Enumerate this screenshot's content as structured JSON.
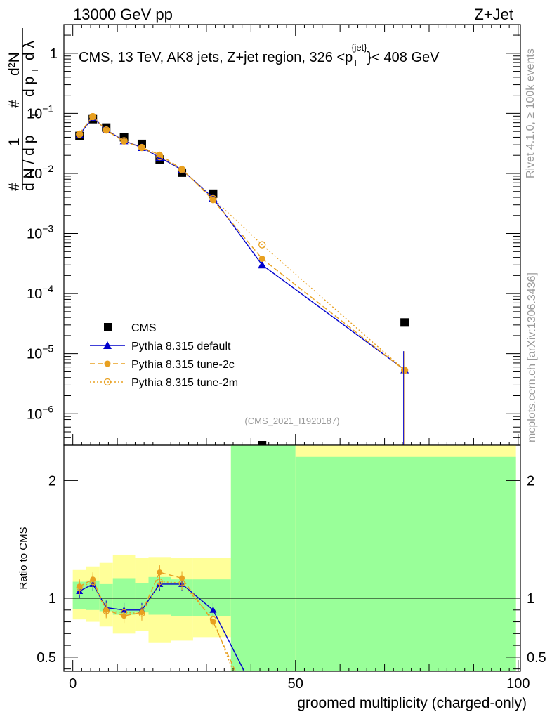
{
  "header": {
    "left": "13000 GeV pp",
    "right": "Z+Jet"
  },
  "side_labels": {
    "rivet": "Rivet 4.1.0, ≥ 100k events",
    "mcplots": "mcplots.cern.ch [arXiv:1306.3436]"
  },
  "chart_data": [
    {
      "type": "scatter",
      "title": "CMS, 13 TeV, AK8 jets, Z+jet region, 326 <p_T^{jet}< 408 GeV",
      "title_parts": {
        "pre": "CMS, 13 TeV, AK8 jets, Z+jet region, 326 <p",
        "sub": "T",
        "sup": "{jet}",
        "post": "}< 408 GeV"
      },
      "watermark": "(CMS_2021_I1920187)",
      "ylabel_parts": {
        "hash": "#",
        "one": "1",
        "dN": "d N / d p",
        "T": "T",
        "d2N": "d²N",
        "dpT": "d p",
        "dlambda": "d λ"
      },
      "yscale": "log",
      "ylim": [
        3e-07,
        3
      ],
      "xlim": [
        -2,
        100.5
      ],
      "y_ticks": [
        {
          "v": 1,
          "label": "1"
        },
        {
          "v": 0.1,
          "base": "10",
          "exp": "−1"
        },
        {
          "v": 0.01,
          "base": "10",
          "exp": "−2"
        },
        {
          "v": 0.001,
          "base": "10",
          "exp": "−3"
        },
        {
          "v": 0.0001,
          "base": "10",
          "exp": "−4"
        },
        {
          "v": 1e-05,
          "base": "10",
          "exp": "−5"
        },
        {
          "v": 1e-06,
          "base": "10",
          "exp": "−6"
        }
      ],
      "legend": {
        "position": "lower-left",
        "entries": [
          "CMS",
          "Pythia 8.315 default",
          "Pythia 8.315 tune-2c",
          "Pythia 8.315 tune-2m"
        ]
      },
      "series": [
        {
          "name": "CMS",
          "color": "#000000",
          "marker": "square",
          "x": [
            1.5,
            4.5,
            7.5,
            11.5,
            15.5,
            19.5,
            24.5,
            31.5,
            42.5,
            74.5
          ],
          "y": [
            0.042,
            0.08,
            0.058,
            0.04,
            0.031,
            0.017,
            0.0103,
            0.0046,
            3e-07,
            3.3e-05
          ]
        },
        {
          "name": "Pythia 8.315 default",
          "color": "#0000cc",
          "marker": "triangle",
          "line": "solid",
          "x": [
            1.5,
            4.5,
            7.5,
            11.5,
            15.5,
            19.5,
            24.5,
            31.5,
            42.5,
            74.5
          ],
          "y": [
            0.044,
            0.086,
            0.053,
            0.035,
            0.027,
            0.0185,
            0.0115,
            0.0039,
            0.0003,
            5.4e-06
          ]
        },
        {
          "name": "Pythia 8.315 tune-2c",
          "color": "#e8a020",
          "marker": "circle",
          "line": "dashed",
          "x": [
            1.5,
            4.5,
            7.5,
            11.5,
            15.5,
            19.5,
            24.5,
            31.5,
            42.5,
            74.5
          ],
          "y": [
            0.046,
            0.09,
            0.052,
            0.034,
            0.027,
            0.0205,
            0.0118,
            0.0036,
            0.00038,
            5.3e-06
          ]
        },
        {
          "name": "Pythia 8.315 tune-2m",
          "color": "#e8a020",
          "marker": "open-circle",
          "line": "dotted",
          "x": [
            1.5,
            4.5,
            7.5,
            11.5,
            15.5,
            19.5,
            24.5,
            31.5,
            42.5,
            74.5
          ],
          "y": [
            0.045,
            0.088,
            0.053,
            0.035,
            0.027,
            0.019,
            0.0116,
            0.0038,
            0.00065,
            5.3e-06
          ]
        }
      ]
    },
    {
      "type": "area",
      "ylabel": "Ratio to CMS",
      "xlabel": "groomed multiplicity (charged-only)",
      "ylim": [
        0.38,
        2.3
      ],
      "xlim": [
        -2,
        100.5
      ],
      "x_ticks": [
        0,
        50,
        100
      ],
      "y_ticks": [
        0.5,
        1,
        2
      ],
      "reference_line": 1,
      "bands": {
        "stat_color": "#99ff99",
        "total_color": "#ffff99",
        "bins": [
          {
            "x0": 0,
            "x1": 3,
            "stat": [
              0.91,
              1.14
            ],
            "total": [
              0.82,
              1.24
            ]
          },
          {
            "x0": 3,
            "x1": 6,
            "stat": [
              0.9,
              1.15
            ],
            "total": [
              0.8,
              1.27
            ]
          },
          {
            "x0": 6,
            "x1": 9,
            "stat": [
              0.89,
              1.12
            ],
            "total": [
              0.76,
              1.3
            ]
          },
          {
            "x0": 9,
            "x1": 14,
            "stat": [
              0.86,
              1.17
            ],
            "total": [
              0.7,
              1.37
            ]
          },
          {
            "x0": 14,
            "x1": 17,
            "stat": [
              0.88,
              1.13
            ],
            "total": [
              0.72,
              1.34
            ]
          },
          {
            "x0": 17,
            "x1": 22,
            "stat": [
              0.86,
              1.18
            ],
            "total": [
              0.62,
              1.35
            ]
          },
          {
            "x0": 22,
            "x1": 27,
            "stat": [
              0.85,
              1.16
            ],
            "total": [
              0.64,
              1.34
            ]
          },
          {
            "x0": 27,
            "x1": 35.5,
            "stat": [
              0.85,
              1.16
            ],
            "total": [
              0.67,
              1.34
            ]
          },
          {
            "x0": 35.5,
            "x1": 50,
            "stat": [
              0.38,
              2.3
            ],
            "total": [
              0.38,
              2.3
            ]
          },
          {
            "x0": 50,
            "x1": 99.5,
            "stat": [
              0.38,
              2.2
            ],
            "total": [
              0.38,
              2.3
            ]
          }
        ]
      },
      "series": [
        {
          "name": "Pythia 8.315 default",
          "x": [
            1.5,
            4.5,
            7.5,
            11.5,
            15.5,
            19.5,
            24.5,
            31.5,
            38.5
          ],
          "y": [
            1.06,
            1.12,
            0.92,
            0.9,
            0.9,
            1.12,
            1.12,
            0.9,
            0.35
          ]
        },
        {
          "name": "Pythia 8.315 tune-2c",
          "x": [
            1.5,
            4.5,
            7.5,
            11.5,
            15.5,
            19.5,
            24.5,
            31.5,
            36.5
          ],
          "y": [
            1.1,
            1.16,
            0.9,
            0.85,
            0.88,
            1.22,
            1.17,
            0.8,
            0.35
          ]
        },
        {
          "name": "Pythia 8.315 tune-2m",
          "x": [
            1.5,
            4.5,
            7.5,
            11.5,
            15.5,
            19.5,
            24.5,
            31.5,
            36
          ],
          "y": [
            1.09,
            1.14,
            0.89,
            0.88,
            0.87,
            1.14,
            1.13,
            0.82,
            0.35
          ]
        }
      ]
    }
  ]
}
